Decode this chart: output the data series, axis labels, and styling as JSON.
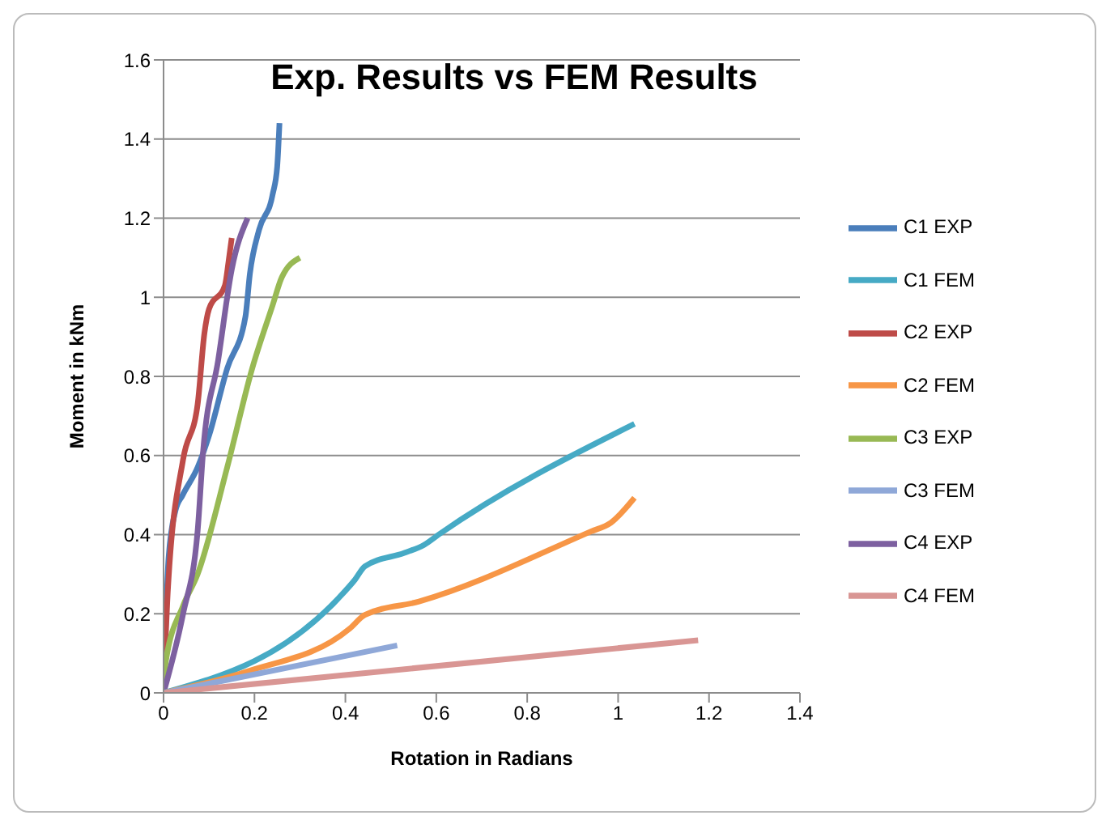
{
  "chart_data": {
    "type": "line",
    "title": "Exp. Results vs FEM Results",
    "xlabel": "Rotation  in Radians",
    "ylabel": "Moment  in kNm",
    "xlim": [
      0,
      1.4
    ],
    "xticks": [
      0,
      0.2,
      0.4,
      0.6,
      0.8,
      1,
      1.2,
      1.4
    ],
    "ylim": [
      0,
      1.6
    ],
    "yticks": [
      0,
      0.2,
      0.4,
      0.6,
      0.8,
      1,
      1.2,
      1.4,
      1.6
    ],
    "grid": "y",
    "legend": "right",
    "marker": "none",
    "line_style": "solid",
    "series": [
      {
        "name": "C1 EXP",
        "color": "#4a7ebb",
        "x": [
          0,
          0.011,
          0.026,
          0.042,
          0.075,
          0.1,
          0.14,
          0.18,
          0.19,
          0.21,
          0.24,
          0.25,
          0.255
        ],
        "values": [
          0,
          0.34,
          0.46,
          0.5,
          0.57,
          0.65,
          0.82,
          0.95,
          1.06,
          1.17,
          1.26,
          1.33,
          1.44
        ]
      },
      {
        "name": "C2 EXP",
        "color": "#be4b48",
        "x": [
          0,
          0.01,
          0.043,
          0.075,
          0.09,
          0.1,
          0.135,
          0.143,
          0.15
        ],
        "values": [
          0,
          0.27,
          0.59,
          0.73,
          0.91,
          0.97,
          1.03,
          1.09,
          1.15
        ]
      },
      {
        "name": "C3 EXP",
        "color": "#98b954",
        "x": [
          0,
          0.005,
          0.043,
          0.075,
          0.14,
          0.195,
          0.24,
          0.26,
          0.3
        ],
        "values": [
          0,
          0.08,
          0.22,
          0.3,
          0.57,
          0.82,
          0.98,
          1.05,
          1.1
        ]
      },
      {
        "name": "C4 EXP",
        "color": "#7d60a0",
        "x": [
          0,
          0.043,
          0.075,
          0.087,
          0.12,
          0.15,
          0.185
        ],
        "values": [
          0,
          0.2,
          0.41,
          0.61,
          0.84,
          1.07,
          1.2
        ]
      },
      {
        "name": "C1 FEM",
        "color": "#46aac5",
        "x": [
          0,
          0.4,
          0.421,
          0.443,
          0.53,
          0.573,
          0.605,
          1.036
        ],
        "values": [
          0,
          0.258,
          0.286,
          0.32,
          0.354,
          0.374,
          0.4,
          0.68
        ]
      },
      {
        "name": "C2 FEM",
        "color": "#f79646",
        "x": [
          0,
          0.184,
          0.41,
          0.443,
          0.562,
          0.94,
          0.984,
          1.036
        ],
        "values": [
          0,
          0.054,
          0.163,
          0.197,
          0.231,
          0.408,
          0.43,
          0.493
        ]
      },
      {
        "name": "C3 FEM",
        "color": "#8fa8d8",
        "x": [
          0,
          0.514
        ],
        "values": [
          0,
          0.12
        ]
      },
      {
        "name": "C4 FEM",
        "color": "#d99694",
        "x": [
          0,
          1.176
        ],
        "values": [
          0,
          0.133
        ]
      }
    ]
  }
}
